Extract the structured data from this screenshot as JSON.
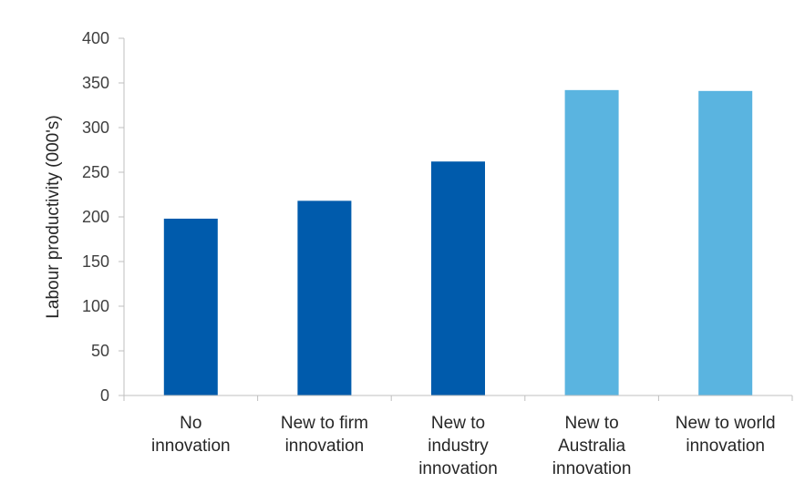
{
  "chart_data": {
    "type": "bar",
    "title": "",
    "xlabel": "",
    "ylabel": "Labour productivity (000's)",
    "ylim": [
      0,
      400
    ],
    "yticks": [
      0,
      50,
      100,
      150,
      200,
      250,
      300,
      350,
      400
    ],
    "categories": [
      [
        "No",
        "innovation"
      ],
      [
        "New to firm",
        "innovation"
      ],
      [
        "New to",
        "industry",
        "innovation"
      ],
      [
        "New to",
        "Australia",
        "innovation"
      ],
      [
        "New to world",
        "innovation"
      ]
    ],
    "values": [
      198,
      218,
      262,
      342,
      341
    ],
    "bar_colors": [
      "#005bac",
      "#005bac",
      "#005bac",
      "#5ab4e0",
      "#5ab4e0"
    ],
    "grid": false,
    "legend": "none"
  }
}
